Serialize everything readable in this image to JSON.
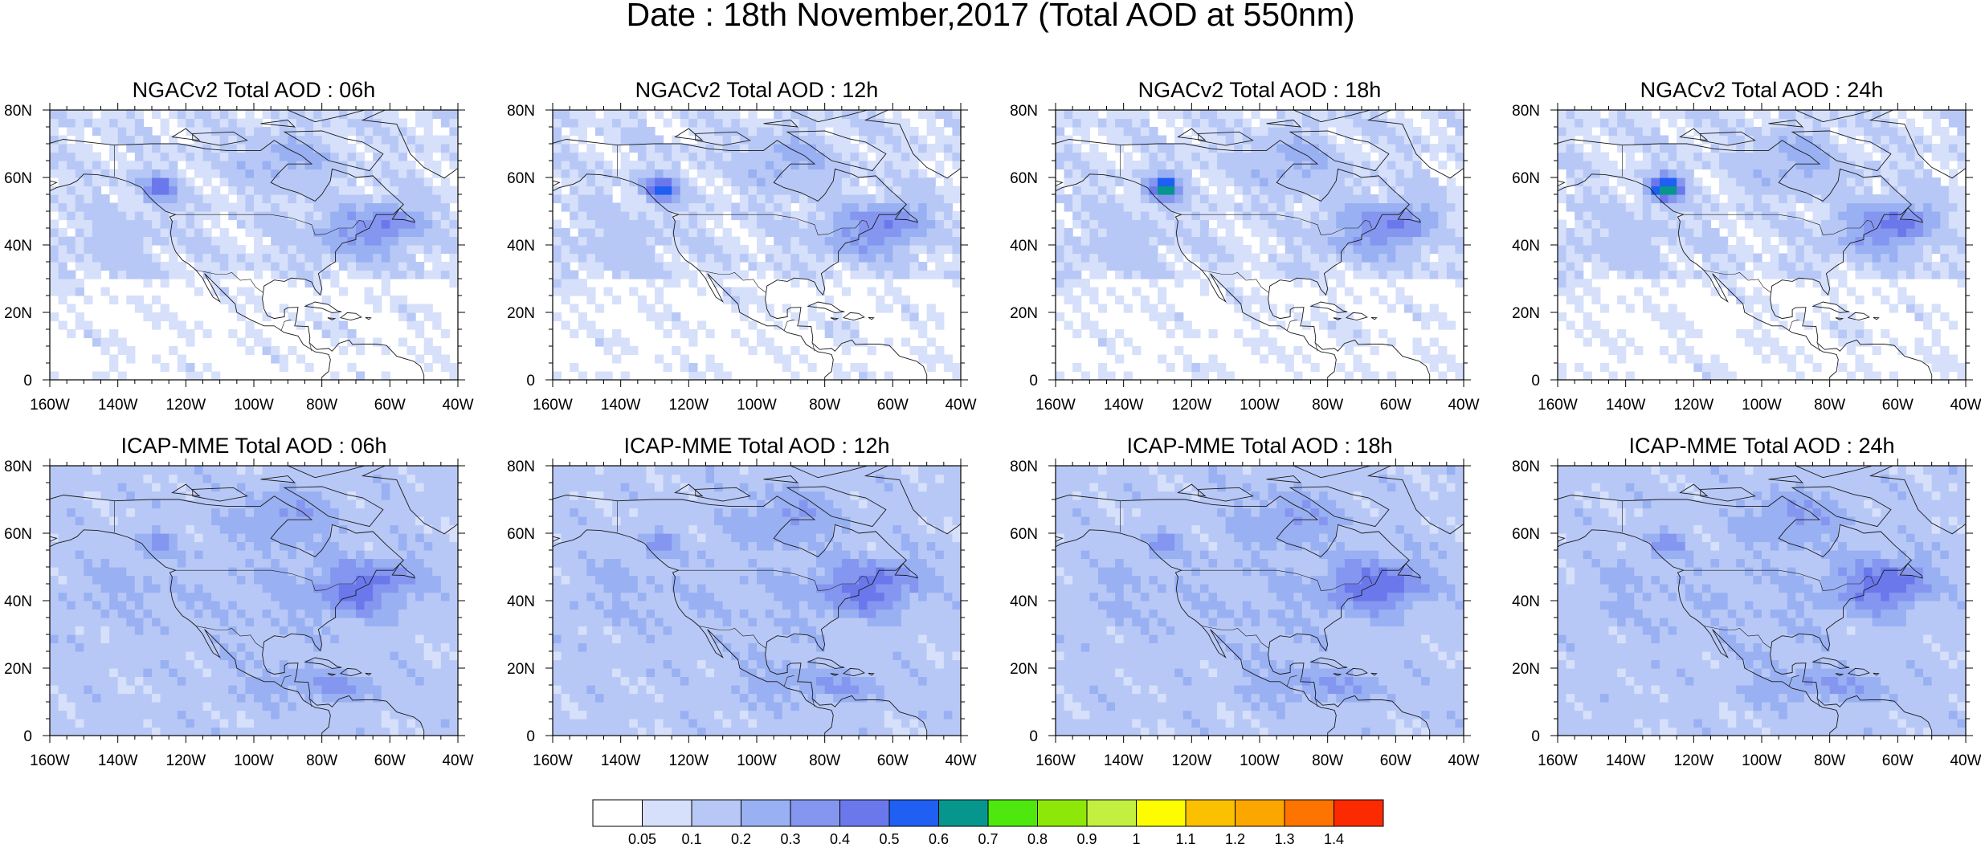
{
  "title": "Date : 18th November,2017 (Total AOD at 550nm)",
  "panels": [
    {
      "title": "NGACv2 Total AOD : 06h",
      "model": "NGACv2",
      "hour": "06h"
    },
    {
      "title": "NGACv2 Total AOD : 12h",
      "model": "NGACv2",
      "hour": "12h"
    },
    {
      "title": "NGACv2 Total AOD : 18h",
      "model": "NGACv2",
      "hour": "18h"
    },
    {
      "title": "NGACv2 Total AOD : 24h",
      "model": "NGACv2",
      "hour": "24h"
    },
    {
      "title": "ICAP-MME Total AOD : 06h",
      "model": "ICAP-MME",
      "hour": "06h"
    },
    {
      "title": "ICAP-MME Total AOD : 12h",
      "model": "ICAP-MME",
      "hour": "12h"
    },
    {
      "title": "ICAP-MME Total AOD : 18h",
      "model": "ICAP-MME",
      "hour": "18h"
    },
    {
      "title": "ICAP-MME Total AOD : 24h",
      "model": "ICAP-MME",
      "hour": "24h"
    }
  ],
  "map": {
    "lon_range": [
      -160,
      -40
    ],
    "lat_range": [
      0,
      80
    ],
    "lon_ticks": [
      "160W",
      "140W",
      "120W",
      "100W",
      "80W",
      "60W",
      "40W"
    ],
    "lat_ticks": [
      "0",
      "20N",
      "40N",
      "60N",
      "80N"
    ]
  },
  "colorbar": {
    "labels": [
      "0.05",
      "0.1",
      "0.2",
      "0.3",
      "0.4",
      "0.5",
      "0.6",
      "0.7",
      "0.8",
      "0.9",
      "1",
      "1.1",
      "1.2",
      "1.3",
      "1.4"
    ],
    "colors": [
      "#ffffff",
      "#d6e0fa",
      "#b8c8f6",
      "#99b0f2",
      "#8596f0",
      "#6b78ec",
      "#1f5ff2",
      "#07968e",
      "#4fe80e",
      "#8de80a",
      "#c2ef40",
      "#fdfd00",
      "#fbc100",
      "#fca600",
      "#fd7400",
      "#fc2a00"
    ]
  }
}
